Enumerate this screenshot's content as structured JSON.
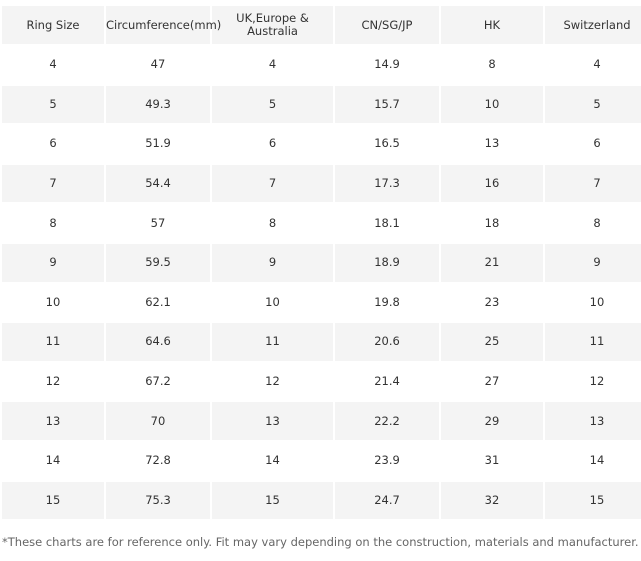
{
  "table": {
    "header": [
      "Ring Size",
      "Circumference(mm)",
      "UK,Europe & Australia",
      "CN/SG/JP",
      "HK",
      "Switzerland"
    ],
    "rows": [
      [
        4,
        47,
        4,
        14.9,
        8,
        4
      ],
      [
        5,
        49.3,
        5,
        15.7,
        10,
        5
      ],
      [
        6,
        51.9,
        6,
        16.5,
        13,
        6
      ],
      [
        7,
        54.4,
        7,
        17.3,
        16,
        7
      ],
      [
        8,
        57,
        8,
        18.1,
        18,
        8
      ],
      [
        9,
        59.5,
        9,
        18.9,
        21,
        9
      ],
      [
        10,
        62.1,
        10,
        19.8,
        23,
        10
      ],
      [
        11,
        64.6,
        11,
        20.6,
        25,
        11
      ],
      [
        12,
        67.2,
        12,
        21.4,
        27,
        12
      ],
      [
        13,
        70,
        13,
        22.2,
        29,
        13
      ],
      [
        14,
        72.8,
        14,
        23.9,
        31,
        14
      ],
      [
        15,
        75.3,
        15,
        24.7,
        32,
        15
      ]
    ]
  },
  "footnote": "*These charts are for reference only. Fit may vary depending on the construction, materials and manufacturer."
}
